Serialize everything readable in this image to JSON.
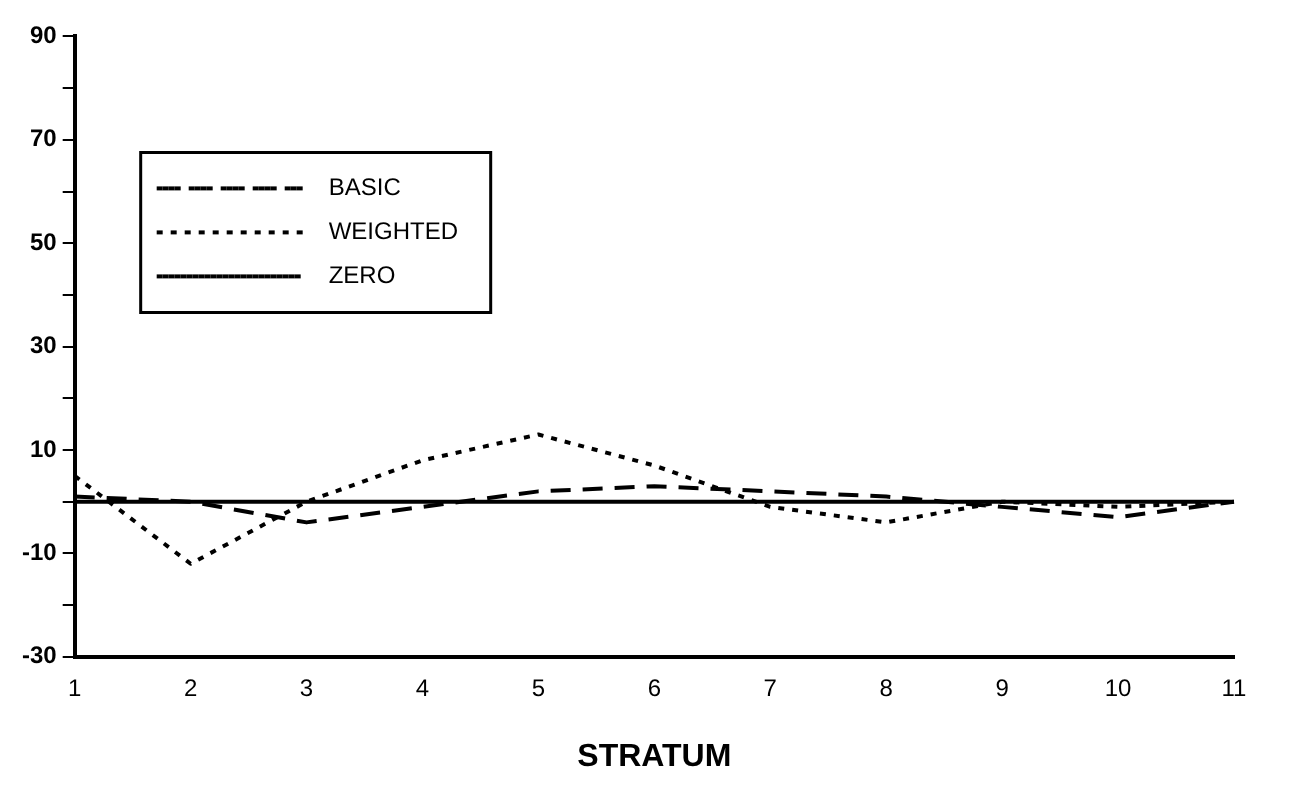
{
  "chart_data": {
    "type": "line",
    "xlabel": "STRATUM",
    "categories": [
      "1",
      "2",
      "3",
      "4",
      "5",
      "6",
      "7",
      "8",
      "9",
      "10",
      "11"
    ],
    "series": [
      {
        "name": "BASIC",
        "color": "#000000",
        "line_style": "dashed",
        "values": [
          1,
          0,
          -4,
          -1,
          2,
          3,
          2,
          1,
          -1,
          -3,
          0
        ]
      },
      {
        "name": "WEIGHTED",
        "color": "#000000",
        "line_style": "dotted",
        "values": [
          5,
          -12,
          0,
          8,
          13,
          7,
          -1,
          -4,
          0,
          -1,
          0
        ]
      },
      {
        "name": "ZERO",
        "color": "#000000",
        "line_style": "solid",
        "values": [
          0,
          0,
          0,
          0,
          0,
          0,
          0,
          0,
          0,
          0,
          0
        ]
      }
    ],
    "ylim": [
      -30,
      90
    ],
    "yticks": [
      -30,
      {
        "value": -20,
        "label": null
      },
      -10,
      {
        "value": 0,
        "label": null
      },
      10,
      {
        "value": 20,
        "label": null
      },
      30,
      {
        "value": 40,
        "label": null
      },
      50,
      {
        "value": 60,
        "label": null
      },
      70,
      {
        "value": 80,
        "label": null
      },
      90
    ],
    "grid": false,
    "legend": "top left",
    "marker": "none"
  }
}
